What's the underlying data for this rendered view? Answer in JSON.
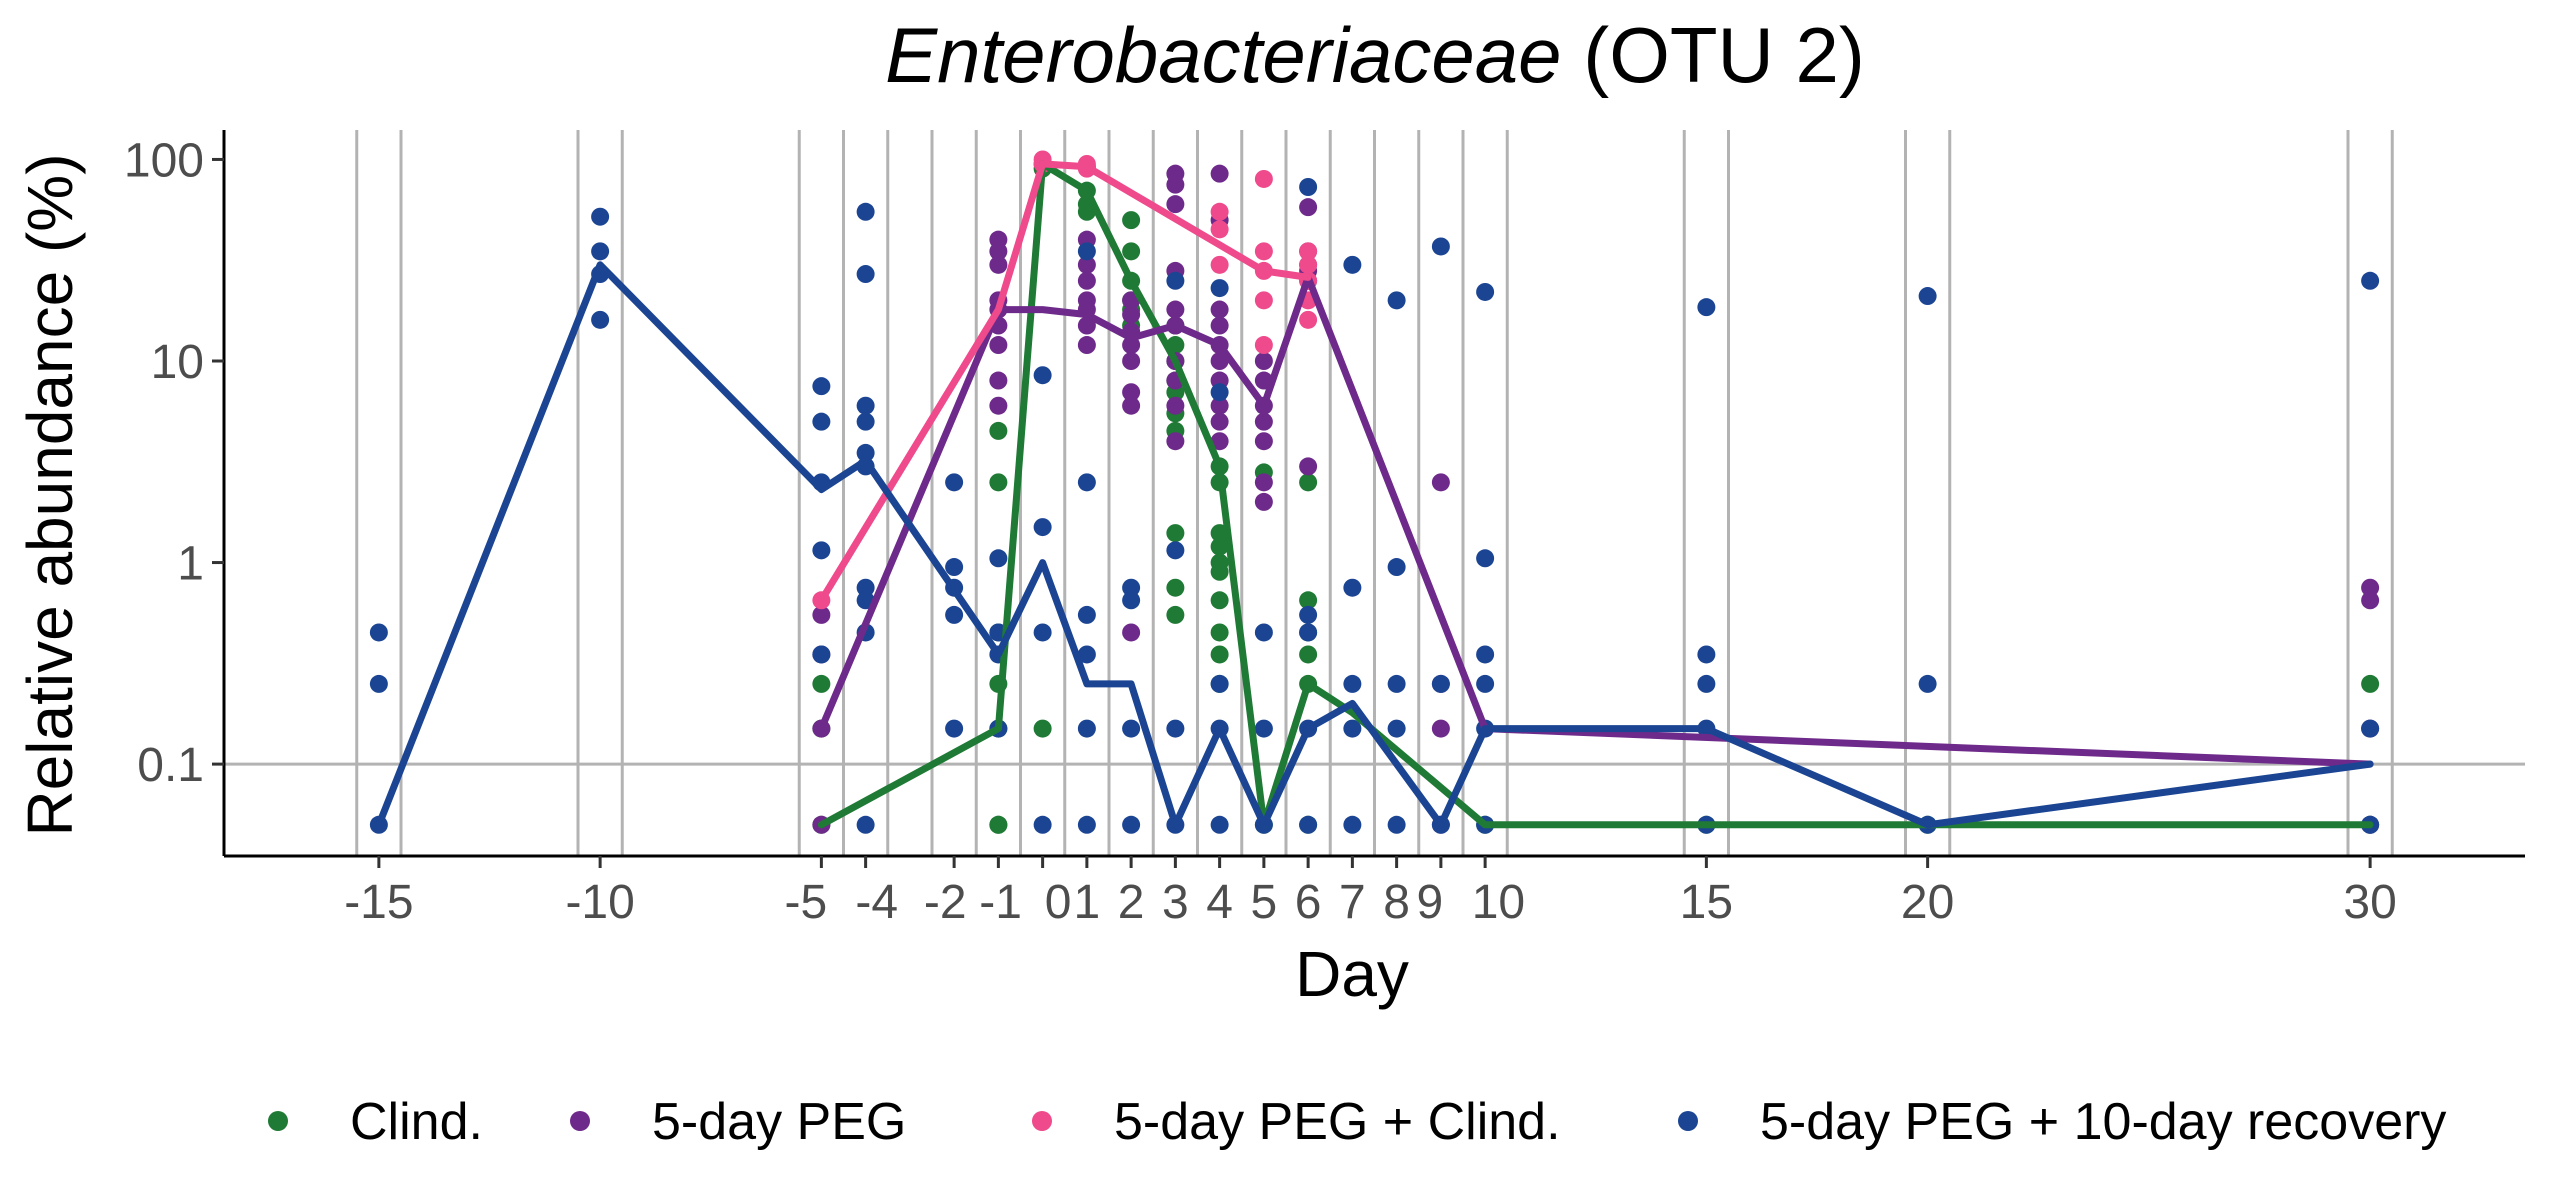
{
  "chart_data": {
    "type": "scatter",
    "title": {
      "italic": "Enterobacteriaceae",
      "rest": " (OTU 2)"
    },
    "xlabel": "Day",
    "ylabel": "Relative abundance (%)",
    "x_ticks": [
      {
        "value": -15,
        "label": "-15"
      },
      {
        "value": -10,
        "label": "-10"
      },
      {
        "value": -5,
        "label": "-5"
      },
      {
        "value": -4,
        "label": "-4"
      },
      {
        "value": -2,
        "label": "-2"
      },
      {
        "value": -1,
        "label": "-1"
      },
      {
        "value": 0,
        "label": "0"
      },
      {
        "value": 1,
        "label": "1"
      },
      {
        "value": 2,
        "label": "2"
      },
      {
        "value": 3,
        "label": "3"
      },
      {
        "value": 4,
        "label": "4"
      },
      {
        "value": 5,
        "label": "5"
      },
      {
        "value": 6,
        "label": "6"
      },
      {
        "value": 7,
        "label": "7"
      },
      {
        "value": 8,
        "label": "8"
      },
      {
        "value": 9,
        "label": "9"
      },
      {
        "value": 10,
        "label": "10"
      },
      {
        "value": 15,
        "label": "15"
      },
      {
        "value": 20,
        "label": "20"
      },
      {
        "value": 30,
        "label": "30"
      }
    ],
    "x_tick_label_offsets": {
      "-5": -0.35,
      "-4": 0.25,
      "-2": -0.2,
      "-1": 0.05,
      "0": 0.35,
      "9": -0.25,
      "10": 0.3
    },
    "vertical_gridlines": [
      -15.5,
      -14.5,
      -10.5,
      -9.5,
      -5.5,
      -4.5,
      -3.5,
      -2.5,
      -1.5,
      -0.5,
      0.5,
      1.5,
      2.5,
      3.5,
      4.5,
      5.5,
      6.5,
      7.5,
      8.5,
      9.5,
      10.5,
      14.5,
      15.5,
      19.5,
      20.5,
      29.5,
      30.5
    ],
    "y_scale": "log",
    "y_ticks": [
      {
        "value": 0.1,
        "label": "0.1"
      },
      {
        "value": 1,
        "label": "1"
      },
      {
        "value": 10,
        "label": "10"
      },
      {
        "value": 100,
        "label": "100"
      }
    ],
    "hline": 0.1,
    "xlim": [
      -18.5,
      33.5
    ],
    "ylim": [
      0.035,
      140
    ],
    "legend_position": "bottom",
    "series": [
      {
        "name": "Clind.",
        "color": "#1f7a35",
        "line": [
          [
            -5,
            0.05
          ],
          [
            -1,
            0.15
          ],
          [
            0,
            95
          ],
          [
            1,
            70
          ],
          [
            2,
            25
          ],
          [
            3,
            10
          ],
          [
            4,
            3
          ],
          [
            5,
            0.05
          ],
          [
            6,
            0.25
          ],
          [
            7,
            0.18
          ],
          [
            10,
            0.05
          ],
          [
            15,
            0.05
          ],
          [
            20,
            0.05
          ],
          [
            30,
            0.05
          ]
        ],
        "points": [
          [
            -5,
            0.25
          ],
          [
            -5,
            0.15
          ],
          [
            -5,
            0.05
          ],
          [
            -1,
            4.5
          ],
          [
            -1,
            2.5
          ],
          [
            -1,
            0.45
          ],
          [
            -1,
            0.25
          ],
          [
            -1,
            0.15
          ],
          [
            -1,
            0.05
          ],
          [
            -1,
            0.05
          ],
          [
            0,
            95
          ],
          [
            0,
            90
          ],
          [
            0,
            0.15
          ],
          [
            1,
            92
          ],
          [
            1,
            70
          ],
          [
            1,
            60
          ],
          [
            1,
            55
          ],
          [
            2,
            50
          ],
          [
            2,
            35
          ],
          [
            2,
            25
          ],
          [
            2,
            20
          ],
          [
            2,
            18
          ],
          [
            2,
            15
          ],
          [
            3,
            15
          ],
          [
            3,
            12
          ],
          [
            3,
            10
          ],
          [
            3,
            8
          ],
          [
            3,
            7
          ],
          [
            3,
            5.5
          ],
          [
            3,
            4.5
          ],
          [
            3,
            1.4
          ],
          [
            3,
            0.75
          ],
          [
            3,
            0.55
          ],
          [
            4,
            3
          ],
          [
            4,
            2.5
          ],
          [
            4,
            1.4
          ],
          [
            4,
            1.2
          ],
          [
            4,
            1
          ],
          [
            4,
            0.9
          ],
          [
            4,
            0.65
          ],
          [
            4,
            0.45
          ],
          [
            4,
            0.35
          ],
          [
            4,
            0.25
          ],
          [
            5,
            2.8
          ],
          [
            5,
            0.05
          ],
          [
            6,
            2.5
          ],
          [
            6,
            0.65
          ],
          [
            6,
            0.45
          ],
          [
            6,
            0.35
          ],
          [
            6,
            0.25
          ],
          [
            6,
            0.05
          ],
          [
            10,
            0.05
          ],
          [
            15,
            0.05
          ],
          [
            20,
            0.05
          ],
          [
            30,
            0.25
          ],
          [
            30,
            0.05
          ]
        ]
      },
      {
        "name": "5-day PEG",
        "color": "#6e2a8a",
        "line": [
          [
            -5,
            0.15
          ],
          [
            -1,
            18
          ],
          [
            0,
            18
          ],
          [
            1,
            17
          ],
          [
            2,
            13
          ],
          [
            3,
            15
          ],
          [
            4,
            12
          ],
          [
            5,
            6
          ],
          [
            6,
            26
          ],
          [
            10,
            0.15
          ],
          [
            30,
            0.1
          ]
        ],
        "points": [
          [
            -5,
            0.55
          ],
          [
            -5,
            0.35
          ],
          [
            -5,
            0.15
          ],
          [
            -5,
            0.05
          ],
          [
            -1,
            40
          ],
          [
            -1,
            35
          ],
          [
            -1,
            30
          ],
          [
            -1,
            20
          ],
          [
            -1,
            18
          ],
          [
            -1,
            15
          ],
          [
            -1,
            12
          ],
          [
            -1,
            8
          ],
          [
            -1,
            6
          ],
          [
            1,
            40
          ],
          [
            1,
            30
          ],
          [
            1,
            25
          ],
          [
            1,
            20
          ],
          [
            1,
            18
          ],
          [
            1,
            15
          ],
          [
            1,
            12
          ],
          [
            2,
            20
          ],
          [
            2,
            17
          ],
          [
            2,
            14
          ],
          [
            2,
            12
          ],
          [
            2,
            10
          ],
          [
            2,
            7
          ],
          [
            2,
            6
          ],
          [
            2,
            0.45
          ],
          [
            3,
            85
          ],
          [
            3,
            75
          ],
          [
            3,
            60
          ],
          [
            3,
            28
          ],
          [
            3,
            18
          ],
          [
            3,
            15
          ],
          [
            3,
            10
          ],
          [
            3,
            8
          ],
          [
            3,
            6
          ],
          [
            3,
            4
          ],
          [
            4,
            85
          ],
          [
            4,
            50
          ],
          [
            4,
            18
          ],
          [
            4,
            15
          ],
          [
            4,
            12
          ],
          [
            4,
            10
          ],
          [
            4,
            8
          ],
          [
            4,
            6
          ],
          [
            4,
            5
          ],
          [
            4,
            4
          ],
          [
            5,
            10
          ],
          [
            5,
            8
          ],
          [
            5,
            6
          ],
          [
            5,
            5
          ],
          [
            5,
            4
          ],
          [
            5,
            2.5
          ],
          [
            5,
            2
          ],
          [
            6,
            58
          ],
          [
            6,
            35
          ],
          [
            6,
            30
          ],
          [
            6,
            28
          ],
          [
            6,
            25
          ],
          [
            6,
            3
          ],
          [
            9,
            2.5
          ],
          [
            9,
            0.25
          ],
          [
            9,
            0.15
          ],
          [
            9,
            0.05
          ],
          [
            30,
            0.75
          ],
          [
            30,
            0.65
          ],
          [
            30,
            0.15
          ],
          [
            30,
            0.05
          ]
        ]
      },
      {
        "name": "5-day PEG + Clind.",
        "color": "#ef4a8c",
        "line": [
          [
            -5,
            0.65
          ],
          [
            -1,
            18
          ],
          [
            0,
            95
          ],
          [
            1,
            92
          ],
          [
            5,
            28
          ],
          [
            6,
            26
          ]
        ],
        "points": [
          [
            -5,
            0.65
          ],
          [
            0,
            100
          ],
          [
            0,
            95
          ],
          [
            1,
            95
          ],
          [
            1,
            90
          ],
          [
            4,
            55
          ],
          [
            4,
            45
          ],
          [
            4,
            30
          ],
          [
            5,
            80
          ],
          [
            5,
            35
          ],
          [
            5,
            28
          ],
          [
            5,
            20
          ],
          [
            5,
            12
          ],
          [
            6,
            35
          ],
          [
            6,
            30
          ],
          [
            6,
            25
          ],
          [
            6,
            20
          ],
          [
            6,
            16
          ]
        ]
      },
      {
        "name": "5-day PEG + 10-day recovery",
        "color": "#1b4593",
        "line": [
          [
            -15,
            0.05
          ],
          [
            -10,
            30
          ],
          [
            -5,
            2.3
          ],
          [
            -4,
            3.2
          ],
          [
            -1,
            0.35
          ],
          [
            0,
            1
          ],
          [
            1,
            0.25
          ],
          [
            2,
            0.25
          ],
          [
            3,
            0.05
          ],
          [
            4,
            0.15
          ],
          [
            5,
            0.05
          ],
          [
            6,
            0.15
          ],
          [
            7,
            0.2
          ],
          [
            9,
            0.05
          ],
          [
            10,
            0.15
          ],
          [
            15,
            0.15
          ],
          [
            20,
            0.05
          ],
          [
            30,
            0.1
          ]
        ],
        "points": [
          [
            -15,
            0.45
          ],
          [
            -15,
            0.25
          ],
          [
            -15,
            0.05
          ],
          [
            -10,
            52
          ],
          [
            -10,
            35
          ],
          [
            -10,
            27
          ],
          [
            -10,
            16
          ],
          [
            -5,
            7.5
          ],
          [
            -5,
            5
          ],
          [
            -5,
            2.5
          ],
          [
            -5,
            1.15
          ],
          [
            -5,
            0.35
          ],
          [
            -4,
            55
          ],
          [
            -4,
            27
          ],
          [
            -4,
            6
          ],
          [
            -4,
            5
          ],
          [
            -4,
            3.5
          ],
          [
            -4,
            3
          ],
          [
            -4,
            0.75
          ],
          [
            -4,
            0.65
          ],
          [
            -4,
            0.45
          ],
          [
            -4,
            0.05
          ],
          [
            -2,
            2.5
          ],
          [
            -2,
            0.95
          ],
          [
            -2,
            0.75
          ],
          [
            -2,
            0.55
          ],
          [
            -2,
            0.15
          ],
          [
            -1,
            1.05
          ],
          [
            -1,
            0.45
          ],
          [
            -1,
            0.35
          ],
          [
            -1,
            0.15
          ],
          [
            0,
            8.5
          ],
          [
            0,
            1.5
          ],
          [
            0,
            0.45
          ],
          [
            0,
            0.05
          ],
          [
            1,
            35
          ],
          [
            1,
            2.5
          ],
          [
            1,
            0.55
          ],
          [
            1,
            0.35
          ],
          [
            1,
            0.15
          ],
          [
            1,
            0.05
          ],
          [
            2,
            0.75
          ],
          [
            2,
            0.65
          ],
          [
            2,
            0.15
          ],
          [
            2,
            0.05
          ],
          [
            3,
            25
          ],
          [
            3,
            1.15
          ],
          [
            3,
            0.15
          ],
          [
            3,
            0.05
          ],
          [
            4,
            23
          ],
          [
            4,
            7
          ],
          [
            4,
            0.25
          ],
          [
            4,
            0.15
          ],
          [
            4,
            0.05
          ],
          [
            5,
            0.45
          ],
          [
            5,
            0.15
          ],
          [
            5,
            0.05
          ],
          [
            6,
            73
          ],
          [
            6,
            0.55
          ],
          [
            6,
            0.45
          ],
          [
            6,
            0.15
          ],
          [
            6,
            0.05
          ],
          [
            7,
            30
          ],
          [
            7,
            0.75
          ],
          [
            7,
            0.25
          ],
          [
            7,
            0.15
          ],
          [
            7,
            0.05
          ],
          [
            8,
            20
          ],
          [
            8,
            0.95
          ],
          [
            8,
            0.25
          ],
          [
            8,
            0.15
          ],
          [
            8,
            0.05
          ],
          [
            9,
            37
          ],
          [
            9,
            0.25
          ],
          [
            9,
            0.05
          ],
          [
            10,
            22
          ],
          [
            10,
            1.05
          ],
          [
            10,
            0.35
          ],
          [
            10,
            0.25
          ],
          [
            10,
            0.15
          ],
          [
            10,
            0.05
          ],
          [
            15,
            18.5
          ],
          [
            15,
            0.35
          ],
          [
            15,
            0.25
          ],
          [
            15,
            0.15
          ],
          [
            15,
            0.05
          ],
          [
            20,
            21
          ],
          [
            20,
            0.25
          ],
          [
            20,
            0.05
          ],
          [
            30,
            25
          ],
          [
            30,
            0.15
          ],
          [
            30,
            0.05
          ]
        ]
      }
    ]
  }
}
